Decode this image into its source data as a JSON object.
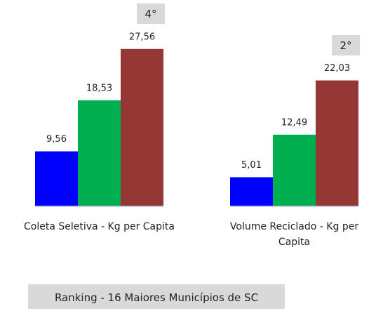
{
  "chart_data": {
    "type": "bar",
    "title": "Ranking - 16 Maiores Municípios de SC",
    "categories": [
      "Coleta Seletiva - Kg per Capita",
      "Volume Reciclado - Kg per Capita"
    ],
    "rankings": [
      "4°",
      "2°"
    ],
    "series": [
      {
        "color": "#0000ff",
        "values": [
          9.56,
          5.01
        ],
        "value_labels": [
          "9,56",
          "5,01"
        ]
      },
      {
        "color": "#00b050",
        "values": [
          18.53,
          12.49
        ],
        "value_labels": [
          "18,53",
          "12,49"
        ]
      },
      {
        "color": "#953735",
        "values": [
          27.56,
          22.03
        ],
        "value_labels": [
          "27,56",
          "22,03"
        ]
      }
    ]
  }
}
